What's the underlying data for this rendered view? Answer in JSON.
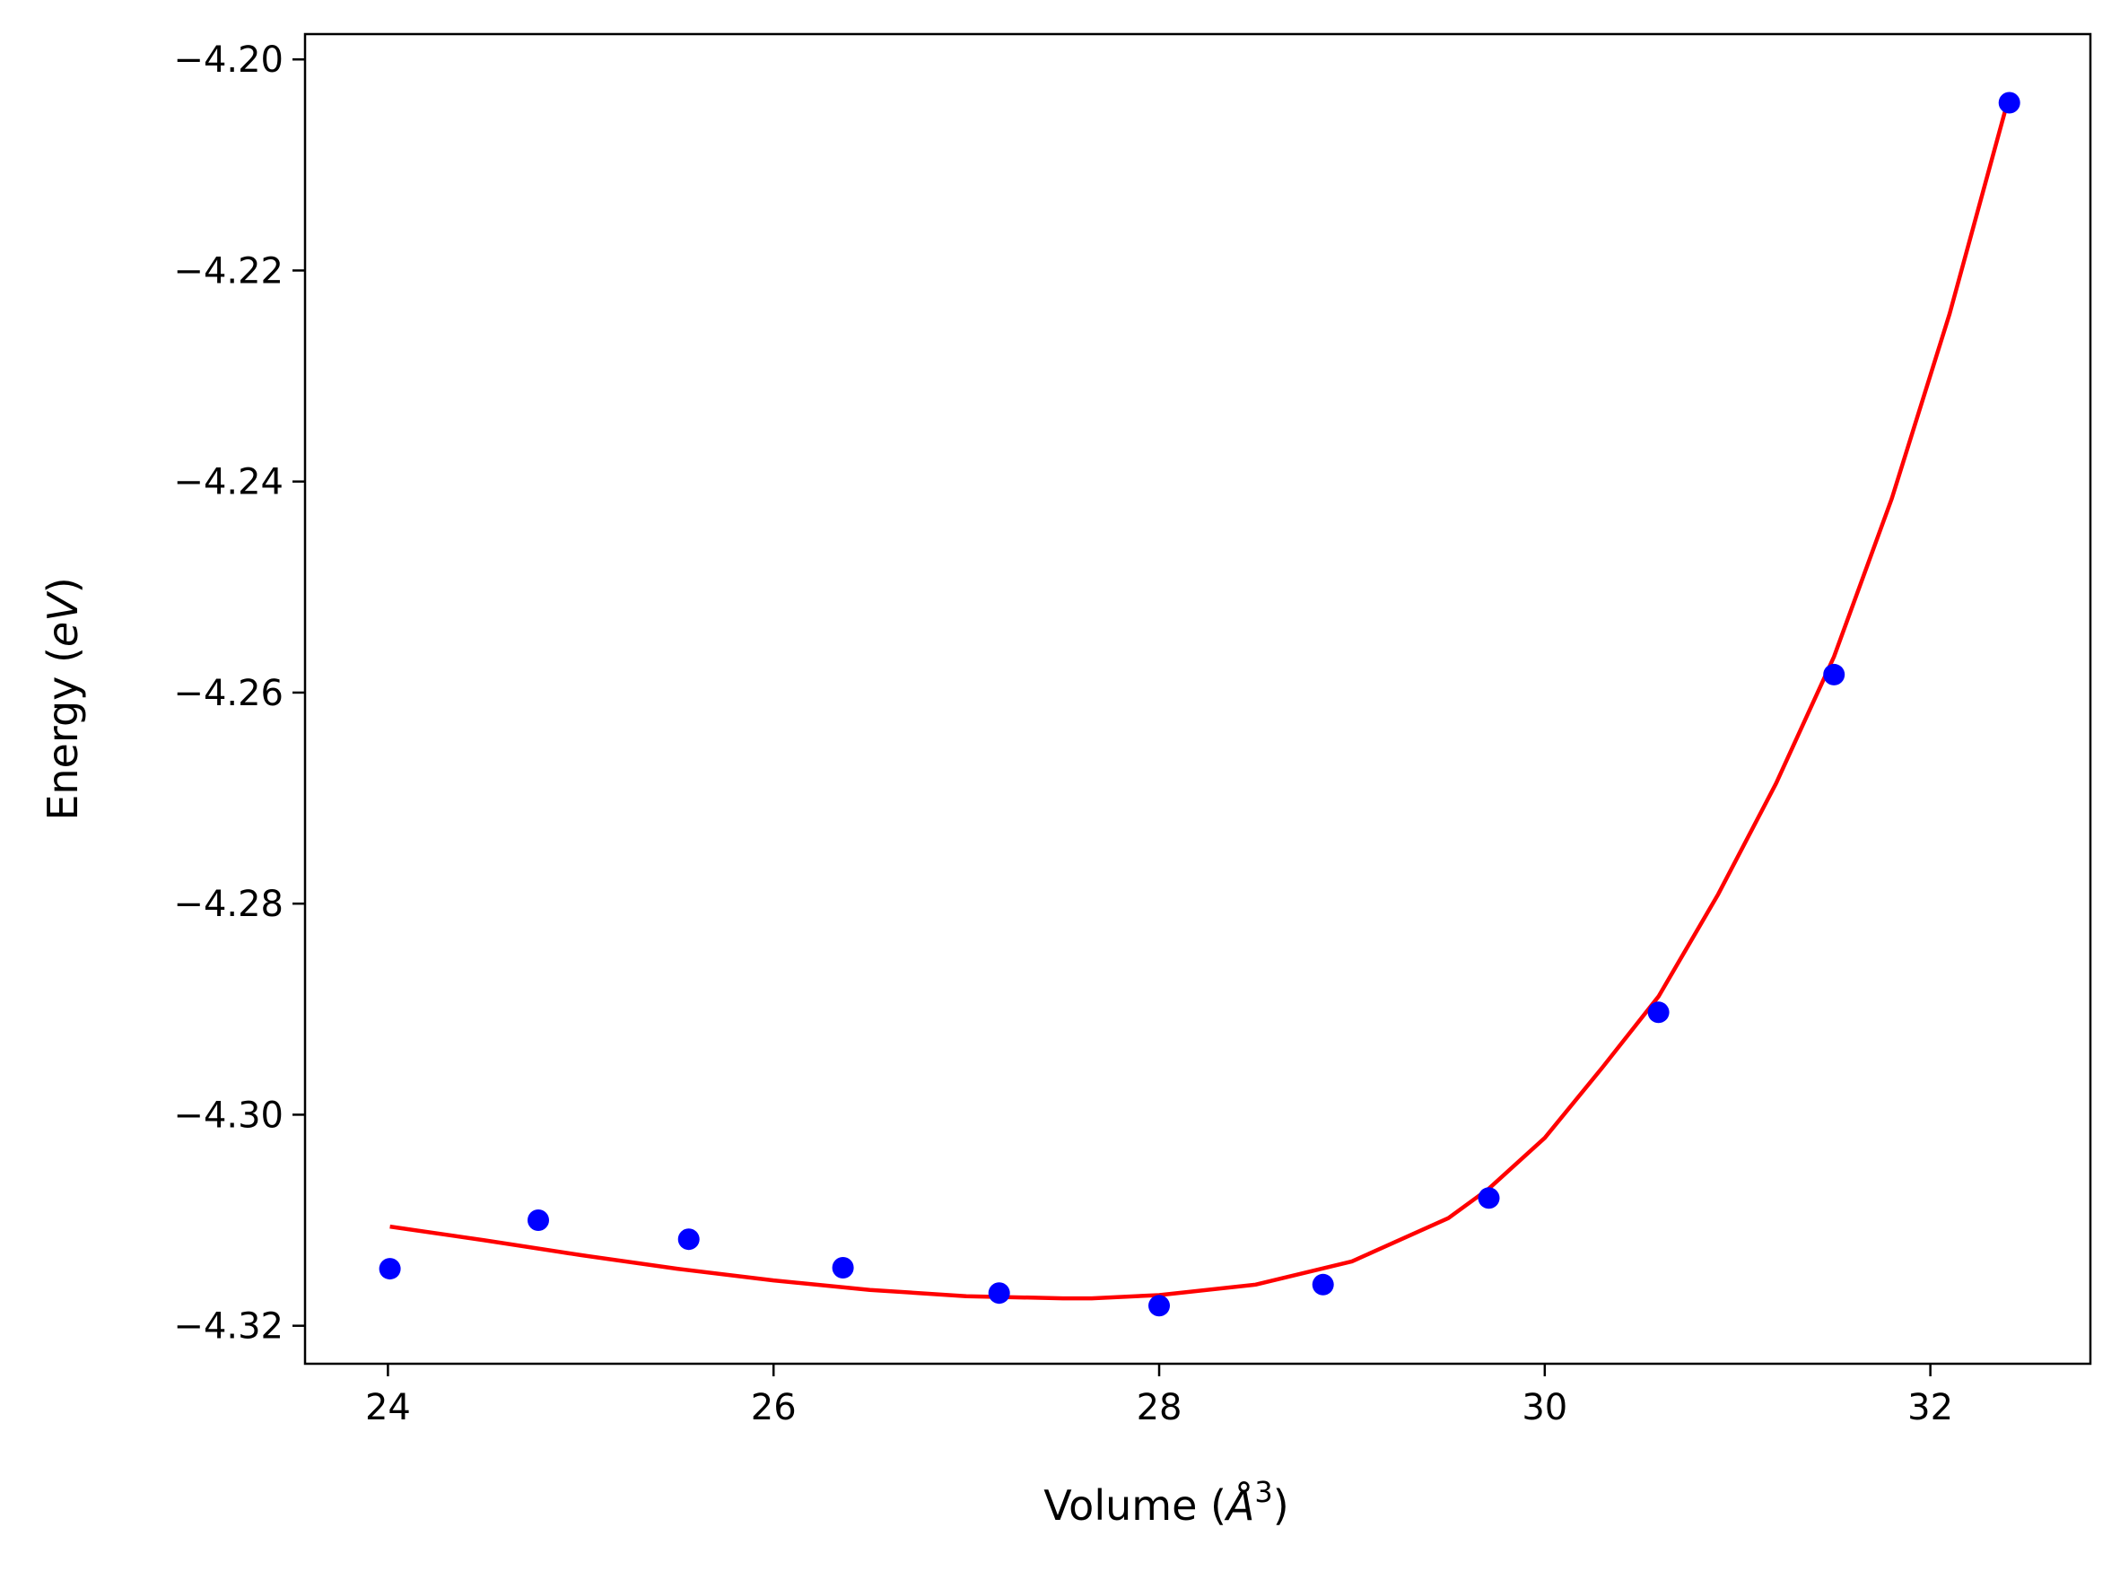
{
  "chart_data": {
    "type": "scatter",
    "title": "",
    "xlabel": "Volume (",
    "xlabel_symbol": "Å",
    "xlabel_sup": "3",
    "xlabel_end": ")",
    "ylabel": "Energy (",
    "ylabel_symbol": "eV",
    "ylabel_end": ")",
    "xlim": [
      23.57,
      32.83
    ],
    "ylim": [
      -4.3236,
      -4.1976
    ],
    "x_ticks": [
      24,
      26,
      28,
      30,
      32
    ],
    "x_tick_labels": [
      "24",
      "26",
      "28",
      "30",
      "32"
    ],
    "y_ticks": [
      -4.32,
      -4.3,
      -4.28,
      -4.26,
      -4.24,
      -4.22,
      -4.2
    ],
    "y_tick_labels": [
      "−4.32",
      "−4.30",
      "−4.28",
      "−4.26",
      "−4.24",
      "−4.22",
      "−4.20"
    ],
    "grid": false,
    "legend": "none",
    "colors": {
      "points": "#0000ff",
      "fit_line": "#ff0000",
      "axes": "#000000"
    },
    "series": [
      {
        "type": "scatter",
        "x": [
          24.01,
          24.78,
          25.56,
          26.36,
          27.17,
          28.0,
          28.85,
          29.71,
          30.59,
          31.5,
          32.41
        ],
        "y": [
          -4.3146,
          -4.31,
          -4.3118,
          -4.3145,
          -4.3169,
          -4.3181,
          -4.3161,
          -4.3079,
          -4.2903,
          -4.2583,
          -4.2041
        ]
      },
      {
        "type": "line",
        "x": [
          24.01,
          24.5,
          25.0,
          25.5,
          26.0,
          26.5,
          27.0,
          27.5,
          27.65,
          28.0,
          28.5,
          29.0,
          29.5,
          29.71,
          30.0,
          30.3,
          30.59,
          30.9,
          31.2,
          31.5,
          31.8,
          32.1,
          32.41
        ],
        "y": [
          -4.3106,
          -4.3119,
          -4.3133,
          -4.3146,
          -4.3157,
          -4.3166,
          -4.3172,
          -4.3174,
          -4.3174,
          -4.3171,
          -4.3161,
          -4.3139,
          -4.3098,
          -4.307,
          -4.3022,
          -4.2955,
          -4.2888,
          -4.2791,
          -4.2686,
          -4.2566,
          -4.2416,
          -4.2241,
          -4.2034
        ]
      }
    ]
  }
}
